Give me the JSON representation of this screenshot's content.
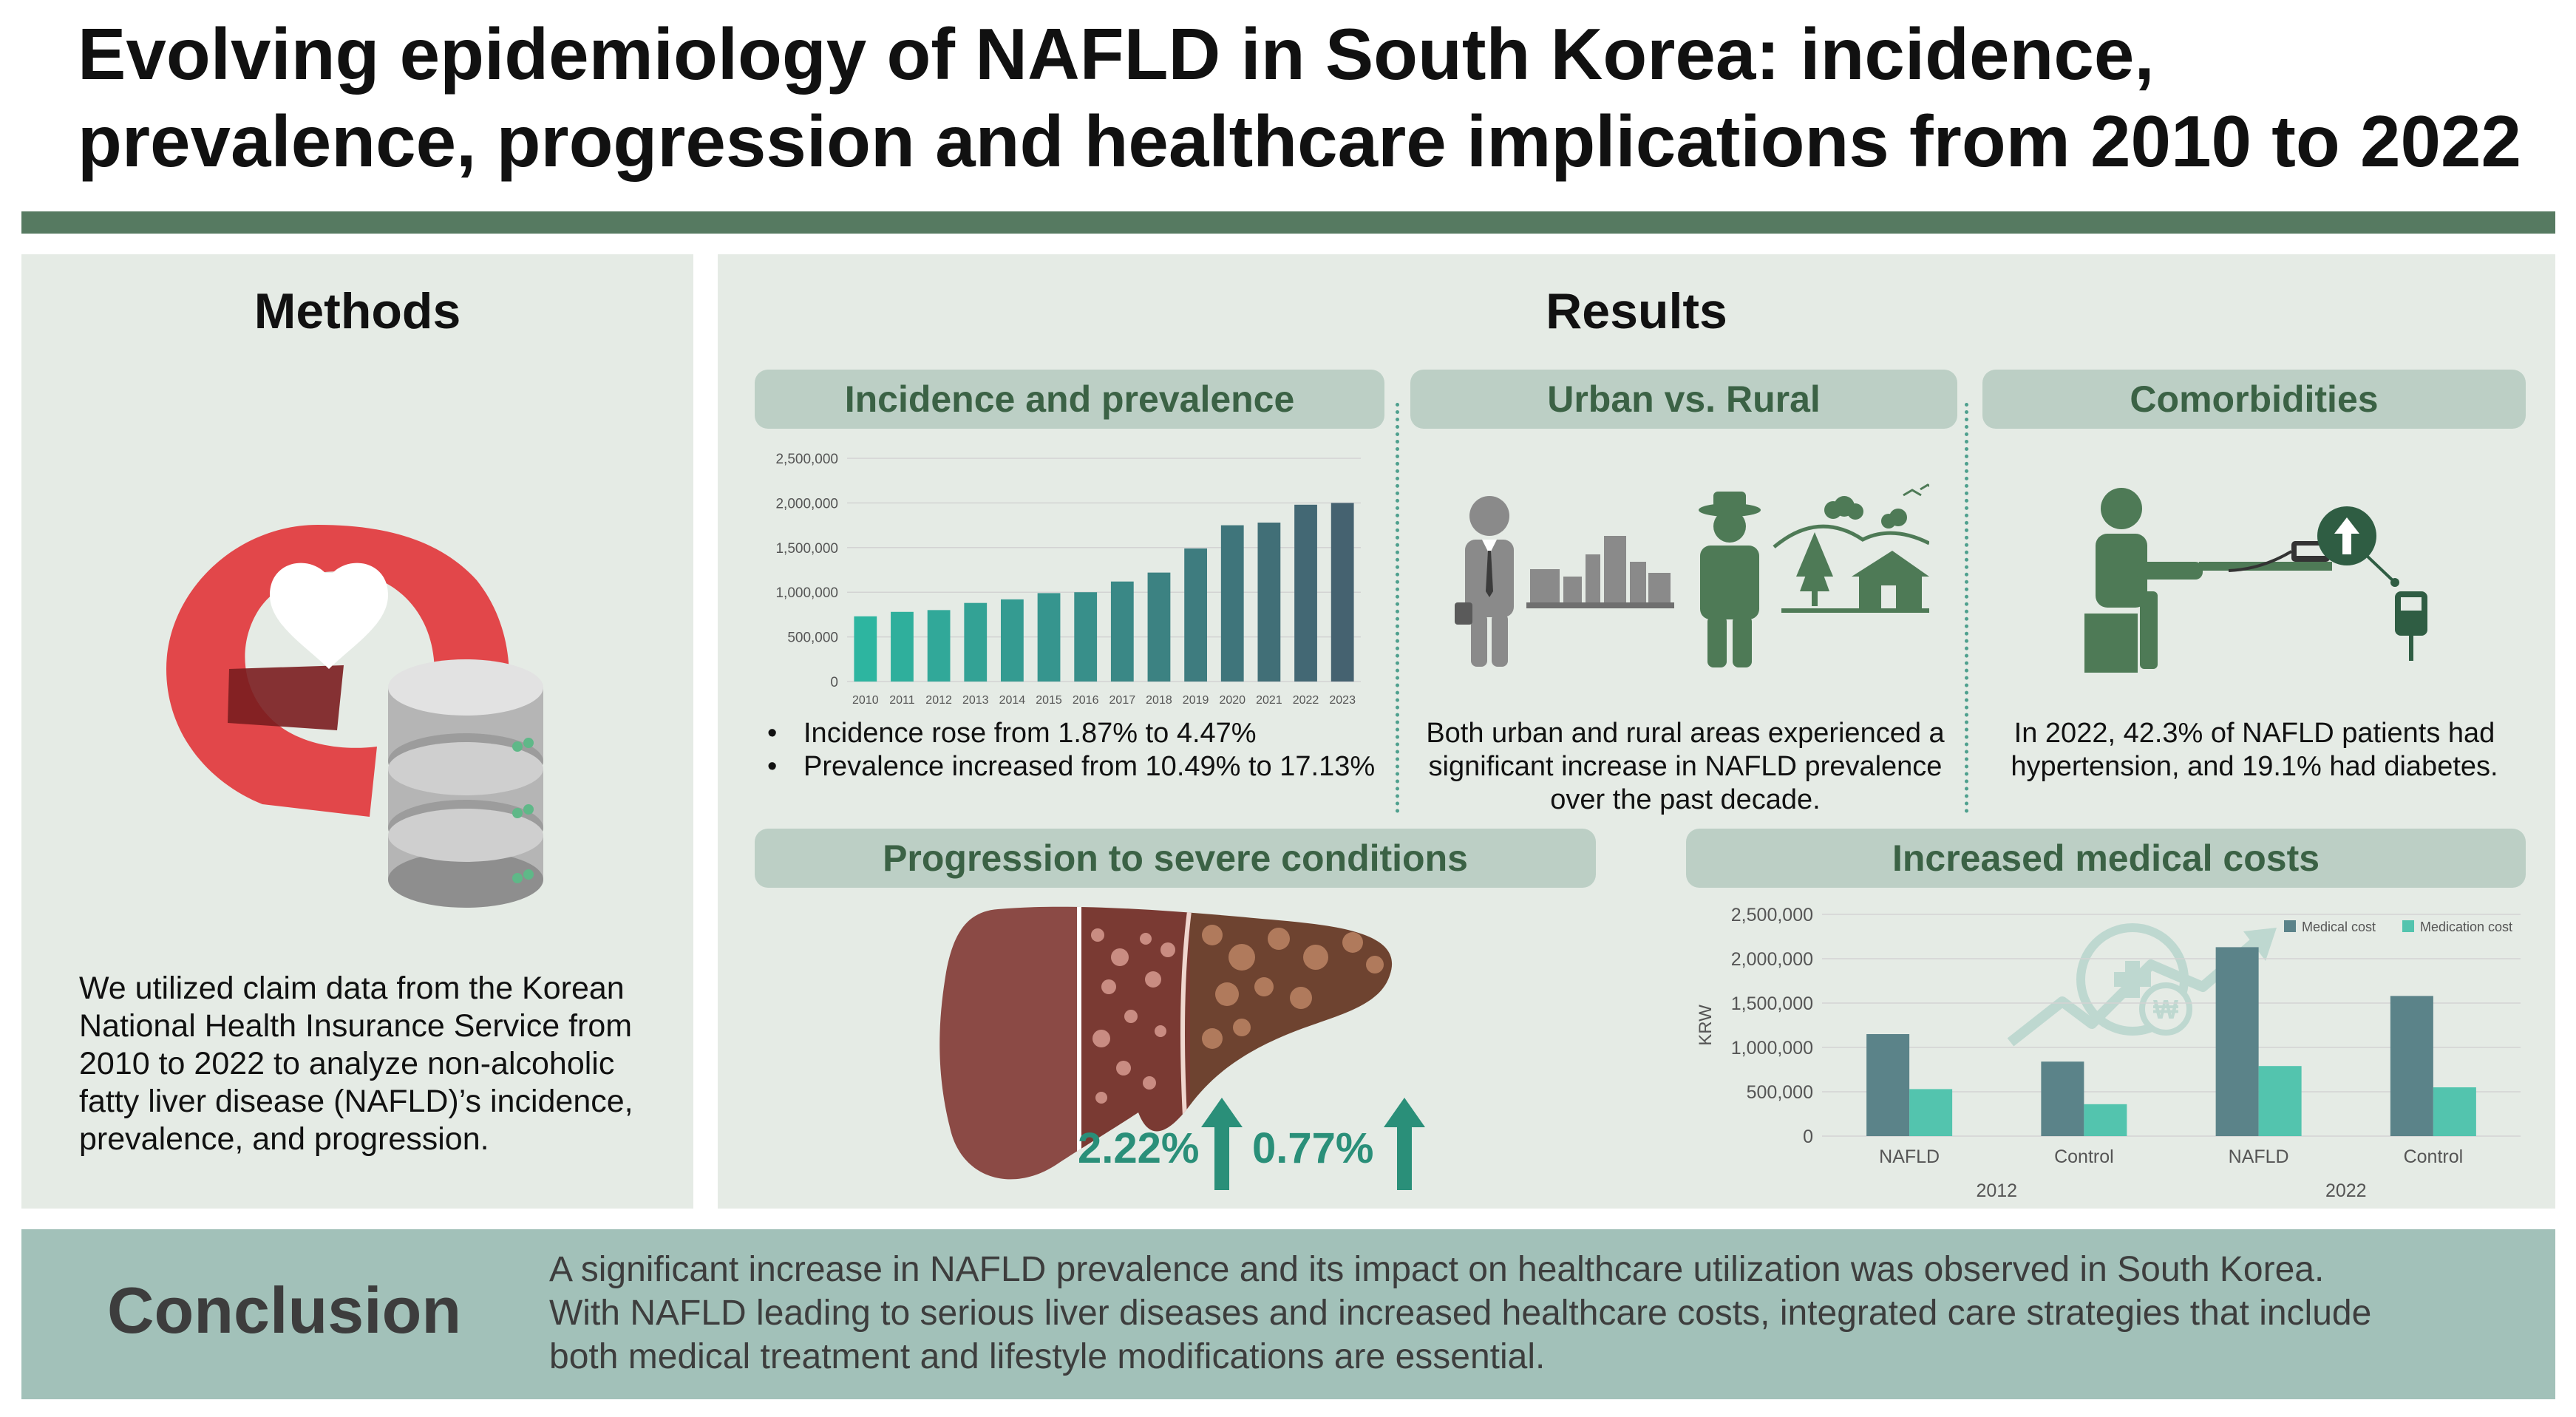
{
  "header": {
    "title_line1": "Evolving epidemiology of NAFLD in South Korea: incidence,",
    "title_line2": "prevalence, progression and healthcare implications from 2010 to 2022"
  },
  "methods": {
    "title": "Methods",
    "text": "We utilized claim data from the Korean National Health Insurance Service from 2010 to 2022 to analyze non-alcoholic fatty liver disease (NAFLD)’s incidence, prevalence, and progression."
  },
  "results": {
    "title": "Results",
    "incidence": {
      "heading": "Incidence and prevalence",
      "bullets": [
        "Incidence rose from 1.87% to 4.47%",
        "Prevalence increased from 10.49% to 17.13%"
      ]
    },
    "urban": {
      "heading": "Urban vs. Rural",
      "text": "Both urban and rural areas experienced a significant increase in NAFLD prevalence over the past decade."
    },
    "comorbidities": {
      "heading": "Comorbidities",
      "text": "In 2022, 42.3% of NAFLD patients had hypertension, and 19.1% had diabetes."
    },
    "progression": {
      "heading": "Progression to severe conditions",
      "pct1": "2.22%",
      "pct2": "0.77%"
    },
    "costs": {
      "heading": "Increased medical costs"
    }
  },
  "conclusion": {
    "label": "Conclusion",
    "line1": "A significant increase in NAFLD prevalence and its impact on healthcare utilization was observed in South Korea.",
    "line2": "With NAFLD leading to serious liver diseases and increased healthcare costs, integrated care strategies that include",
    "line3": "both medical treatment and lifestyle modifications are essential."
  },
  "colors": {
    "accent_green": "#567a61",
    "pill_bg": "#bccfc5",
    "panel_bg": "#e5ebe5",
    "conclusion_bg": "#a2c1b9",
    "bar_teal": "#2db5a0",
    "bar_dark": "#456270",
    "medical_cost": "#5b8389",
    "medication_cost": "#53c4ae"
  },
  "icons": [
    "nhis-logo-icon",
    "database-icon",
    "businessman-icon",
    "city-skyline-icon",
    "farmer-icon",
    "rural-house-icon",
    "blood-pressure-patient-icon",
    "glucose-meter-icon",
    "liver-progression-icon",
    "arrow-up-icon",
    "healthcare-cost-growth-icon"
  ],
  "chart_data": [
    {
      "type": "bar",
      "title": "",
      "categories": [
        "2010",
        "2011",
        "2012",
        "2013",
        "2014",
        "2015",
        "2016",
        "2017",
        "2018",
        "2019",
        "2020",
        "2021",
        "2022",
        "2023"
      ],
      "values": [
        730000,
        780000,
        800000,
        880000,
        920000,
        990000,
        1000000,
        1120000,
        1220000,
        1490000,
        1750000,
        1780000,
        1980000,
        2000000
      ],
      "ylim": [
        0,
        2500000
      ],
      "yticks": [
        "0",
        "500,000",
        "1,000,000",
        "1,500,000",
        "2,000,000",
        "2,500,000"
      ],
      "xlabel": "",
      "ylabel": "",
      "grid": true
    },
    {
      "type": "bar",
      "title": "",
      "categories": [
        "NAFLD",
        "Control",
        "NAFLD",
        "Control"
      ],
      "groups": [
        "2012",
        "2022"
      ],
      "series": [
        {
          "name": "Medical cost",
          "values": [
            1150000,
            840000,
            2130000,
            1580000
          ]
        },
        {
          "name": "Medication cost",
          "values": [
            530000,
            360000,
            790000,
            550000
          ]
        }
      ],
      "ylim": [
        0,
        2500000
      ],
      "yticks": [
        "0",
        "500,000",
        "1,000,000",
        "1,500,000",
        "2,000,000",
        "2,500,000"
      ],
      "ylabel": "KRW",
      "legend": "top-right",
      "grid": true
    }
  ]
}
